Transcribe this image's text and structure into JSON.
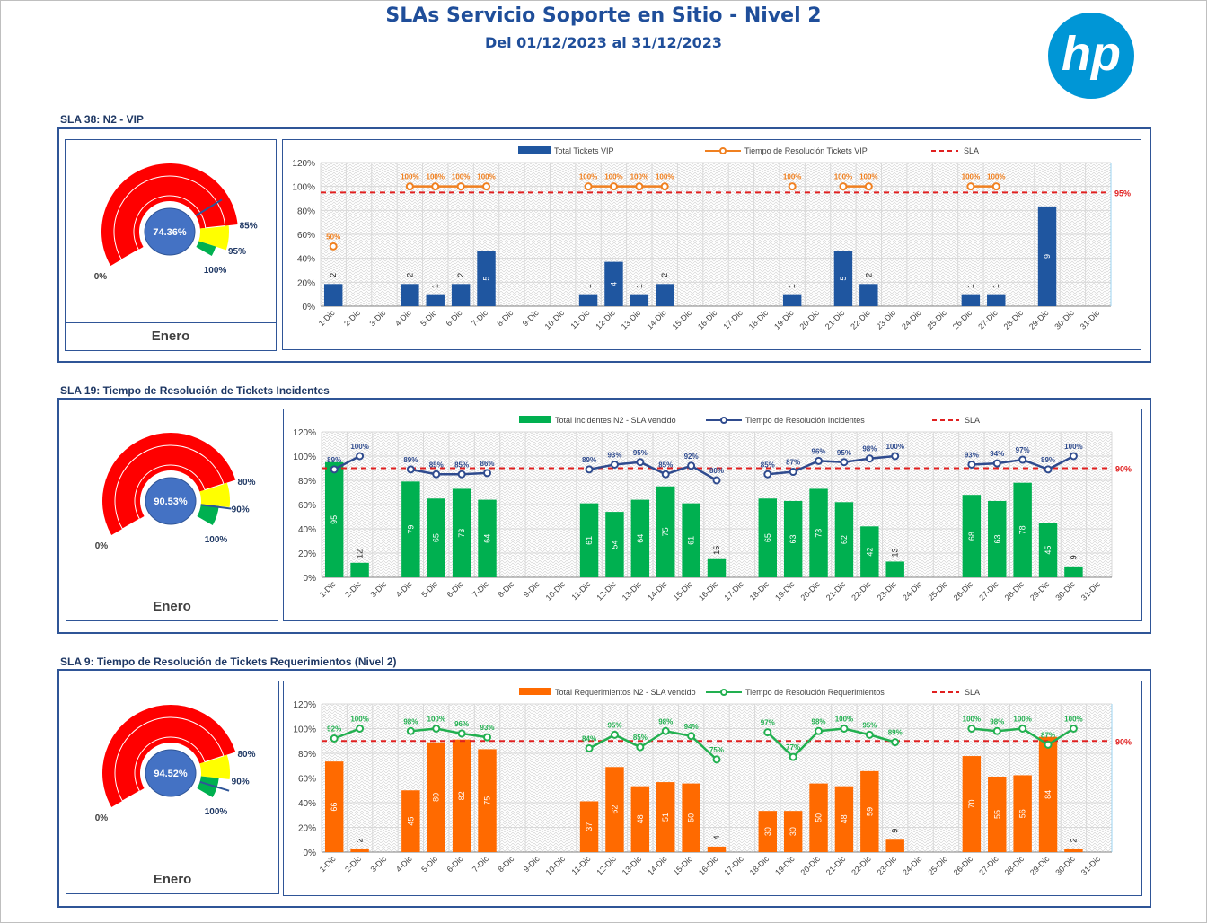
{
  "header": {
    "title": "SLAs Servicio Soporte en Sitio - Nivel 2",
    "subtitle": "Del 01/12/2023 al 31/12/2023",
    "logo_text": "hp"
  },
  "colors": {
    "blue": "#1f56a0",
    "green": "#00b050",
    "orange": "#ff6a00",
    "lineBlue": "#2f4b8e",
    "lineOrange": "#f08020",
    "lineGreen": "#22b050",
    "sla": "#e02020",
    "gaugeRed": "#ff0000",
    "gaugeYellow": "#ffff00",
    "gaugeGreen": "#00b050",
    "gaugeCenter": "#4472c4"
  },
  "days": [
    "1-Dic",
    "2-Dic",
    "3-Dic",
    "4-Dic",
    "5-Dic",
    "6-Dic",
    "7-Dic",
    "8-Dic",
    "9-Dic",
    "10-Dic",
    "11-Dic",
    "12-Dic",
    "13-Dic",
    "14-Dic",
    "15-Dic",
    "16-Dic",
    "17-Dic",
    "18-Dic",
    "19-Dic",
    "20-Dic",
    "21-Dic",
    "22-Dic",
    "23-Dic",
    "24-Dic",
    "25-Dic",
    "26-Dic",
    "27-Dic",
    "28-Dic",
    "29-Dic",
    "30-Dic",
    "31-Dic"
  ],
  "y_ticks": [
    "0%",
    "20%",
    "40%",
    "60%",
    "80%",
    "100%",
    "120%"
  ],
  "sections": [
    {
      "label": "SLA 38: N2 - VIP",
      "gauge": {
        "value": 74.36,
        "value_text": "74.36%",
        "label_0": "0%",
        "label_a": "85%",
        "label_b": "95%",
        "label_100": "100%",
        "t1": 85,
        "t2": 95,
        "month": "Enero"
      },
      "chart_data": {
        "type": "bar",
        "ylim": [
          0,
          120
        ],
        "legend": [
          "Total Tickets VIP",
          "Tiempo de Resolución Tickets VIP",
          "SLA"
        ],
        "bar_max": 10.8,
        "bars": [
          2,
          null,
          null,
          2,
          1,
          2,
          5,
          null,
          null,
          null,
          1,
          4,
          1,
          2,
          null,
          null,
          null,
          null,
          1,
          null,
          5,
          2,
          null,
          null,
          null,
          1,
          1,
          null,
          9,
          null,
          null
        ],
        "pct": [
          50,
          null,
          null,
          100,
          100,
          100,
          100,
          null,
          null,
          null,
          100,
          100,
          100,
          100,
          null,
          null,
          null,
          null,
          100,
          null,
          100,
          100,
          null,
          null,
          null,
          100,
          100,
          null,
          null,
          null,
          null
        ],
        "sla": 95,
        "sla_text": "95%",
        "bar_color": "blue",
        "line_color": "lineOrange",
        "label_color": "#f08020",
        "right_axis": true
      }
    },
    {
      "label": "SLA 19: Tiempo de Resolución de Tickets Incidentes",
      "gauge": {
        "value": 90.53,
        "value_text": "90.53%",
        "label_0": "0%",
        "label_a": "80%",
        "label_b": "90%",
        "label_100": "100%",
        "t1": 80,
        "t2": 90,
        "month": "Enero"
      },
      "chart_data": {
        "type": "bar",
        "ylim": [
          0,
          120
        ],
        "legend": [
          "Total Incidentes N2 - SLA  vencido",
          "Tiempo de Resolución Incidentes",
          "SLA"
        ],
        "bar_max": 100,
        "bars": [
          95,
          12,
          null,
          79,
          65,
          73,
          64,
          null,
          null,
          null,
          61,
          54,
          64,
          75,
          61,
          15,
          null,
          65,
          63,
          73,
          62,
          42,
          13,
          null,
          null,
          68,
          63,
          78,
          45,
          9,
          null
        ],
        "pct": [
          89,
          100,
          null,
          89,
          85,
          85,
          86,
          null,
          null,
          null,
          89,
          93,
          95,
          85,
          92,
          80,
          null,
          85,
          87,
          96,
          95,
          98,
          100,
          null,
          null,
          93,
          94,
          97,
          89,
          100,
          null
        ],
        "sla": 90,
        "sla_text": "90%",
        "bar_color": "green",
        "line_color": "lineBlue",
        "label_color": "#2f4b8e",
        "right_axis": false
      }
    },
    {
      "label": "SLA 9: Tiempo de Resolución de Tickets Requerimientos (Nivel 2)",
      "gauge": {
        "value": 94.52,
        "value_text": "94.52%",
        "label_0": "0%",
        "label_a": "80%",
        "label_b": "90%",
        "label_100": "100%",
        "t1": 80,
        "t2": 90,
        "month": "Enero"
      },
      "chart_data": {
        "type": "bar",
        "ylim": [
          0,
          120
        ],
        "legend": [
          "Total Requerimientos N2 - SLA vencido",
          "Tiempo de Resolución Requerimientos",
          "SLA"
        ],
        "bar_max": 90,
        "bars": [
          66,
          2,
          null,
          45,
          80,
          82,
          75,
          null,
          null,
          null,
          37,
          62,
          48,
          51,
          50,
          4,
          null,
          30,
          30,
          50,
          48,
          59,
          9,
          null,
          null,
          70,
          55,
          56,
          84,
          2,
          null
        ],
        "pct": [
          92,
          100,
          null,
          98,
          100,
          96,
          93,
          null,
          null,
          null,
          84,
          95,
          85,
          98,
          94,
          75,
          null,
          97,
          77,
          98,
          100,
          95,
          89,
          null,
          null,
          100,
          98,
          100,
          87,
          100,
          null
        ],
        "sla": 90,
        "sla_text": "90%",
        "bar_color": "orange",
        "line_color": "lineGreen",
        "label_color": "#22b050",
        "right_axis": true
      }
    }
  ]
}
